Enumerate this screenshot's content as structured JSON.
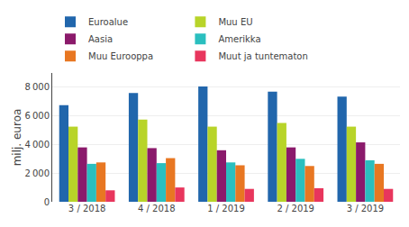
{
  "chart_data": {
    "type": "bar",
    "categories": [
      "3 / 2018",
      "4 / 2018",
      "1 / 2019",
      "2 / 2019",
      "3 / 2019"
    ],
    "series": [
      {
        "name": "Euroalue",
        "color": "#2166ac",
        "values": [
          6750,
          7600,
          8050,
          7700,
          7350
        ]
      },
      {
        "name": "Muu EU",
        "color": "#b8d429",
        "values": [
          5250,
          5750,
          5250,
          5500,
          5250
        ]
      },
      {
        "name": "Aasia",
        "color": "#8b1a6b",
        "values": [
          3800,
          3750,
          3600,
          3800,
          4150
        ]
      },
      {
        "name": "Amerikka",
        "color": "#2abfbf",
        "values": [
          2650,
          2700,
          2750,
          3000,
          2900
        ]
      },
      {
        "name": "Muu Eurooppa",
        "color": "#e87722",
        "values": [
          2750,
          3050,
          2550,
          2500,
          2650
        ]
      },
      {
        "name": "Muut ja tuntematon",
        "color": "#e8365d",
        "values": [
          800,
          1000,
          900,
          950,
          900
        ]
      }
    ],
    "ylabel": "milj. euroa",
    "ylim": [
      0,
      9000
    ],
    "yticks": [
      0,
      {
        "value": 2000,
        "label": "2 000"
      },
      {
        "value": 4000,
        "label": "4 000"
      },
      {
        "value": 6000,
        "label": "6 000"
      },
      {
        "value": 8000,
        "label": "8 000"
      }
    ],
    "grid": true,
    "legend": "top"
  }
}
